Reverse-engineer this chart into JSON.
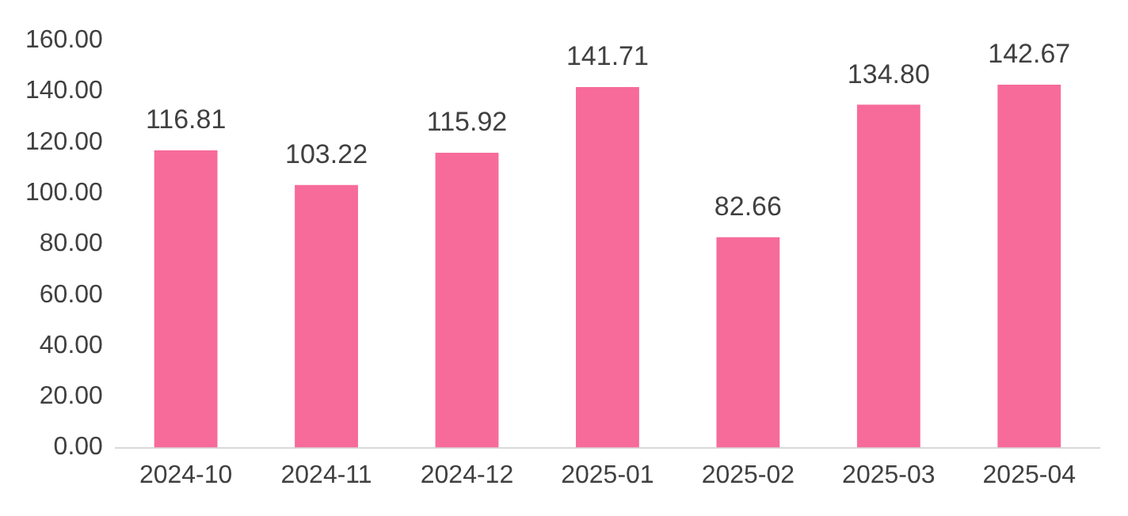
{
  "chart_data": {
    "type": "bar",
    "categories": [
      "2024-10",
      "2024-11",
      "2024-12",
      "2025-01",
      "2025-02",
      "2025-03",
      "2025-04"
    ],
    "values": [
      116.81,
      103.22,
      115.92,
      141.71,
      82.66,
      134.8,
      142.67
    ],
    "value_labels": [
      "116.81",
      "103.22",
      "115.92",
      "141.71",
      "82.66",
      "134.80",
      "142.67"
    ],
    "color": "#f76b9b",
    "ylim": [
      0,
      160
    ],
    "yticks": [
      {
        "value": 0,
        "label": "0.00"
      },
      {
        "value": 20,
        "label": "20.00"
      },
      {
        "value": 40,
        "label": "40.00"
      },
      {
        "value": 60,
        "label": "60.00"
      },
      {
        "value": 80,
        "label": "80.00"
      },
      {
        "value": 100,
        "label": "100.00"
      },
      {
        "value": 120,
        "label": "120.00"
      },
      {
        "value": 140,
        "label": "140.00"
      },
      {
        "value": 160,
        "label": "160.00"
      }
    ],
    "grid": false,
    "legend": false
  }
}
